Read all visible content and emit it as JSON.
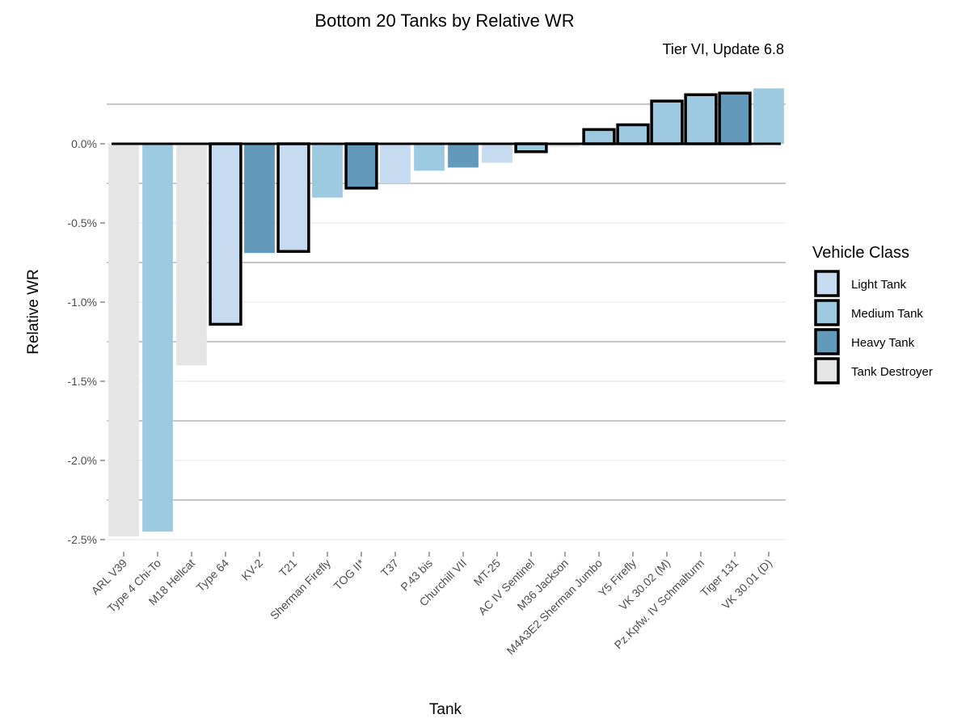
{
  "chart_data": {
    "type": "bar",
    "title": "Bottom 20 Tanks by Relative WR",
    "subtitle": "Tier VI, Update 6.8",
    "xlabel": "Tank",
    "ylabel": "Relative WR",
    "ylim": [
      -2.5,
      0.35
    ],
    "y_ticks": [
      "0.0%",
      "-0.5%",
      "-1.0%",
      "-1.5%",
      "-2.0%",
      "-2.5%"
    ],
    "y_tick_values": [
      0.0,
      -0.5,
      -1.0,
      -1.5,
      -2.0,
      -2.5
    ],
    "grid": true,
    "legend_position": "right",
    "legend_title": "Vehicle Class",
    "classes": [
      {
        "name": "Light Tank",
        "color": "#c6dbef"
      },
      {
        "name": "Medium Tank",
        "color": "#9ecae1"
      },
      {
        "name": "Heavy Tank",
        "color": "#6399bb"
      },
      {
        "name": "Tank Destroyer",
        "color": "#e5e5e5"
      }
    ],
    "bars": [
      {
        "tank": "ARL V39",
        "value": -2.48,
        "class": "Tank Destroyer",
        "outlined": false
      },
      {
        "tank": "Type 4 Chi-To",
        "value": -2.45,
        "class": "Medium Tank",
        "outlined": false
      },
      {
        "tank": "M18 Hellcat",
        "value": -1.4,
        "class": "Tank Destroyer",
        "outlined": false
      },
      {
        "tank": "Type 64",
        "value": -1.14,
        "class": "Light Tank",
        "outlined": true
      },
      {
        "tank": "KV-2",
        "value": -0.69,
        "class": "Heavy Tank",
        "outlined": false
      },
      {
        "tank": "T21",
        "value": -0.68,
        "class": "Light Tank",
        "outlined": true
      },
      {
        "tank": "Sherman Firefly",
        "value": -0.34,
        "class": "Medium Tank",
        "outlined": false
      },
      {
        "tank": "TOG II*",
        "value": -0.28,
        "class": "Heavy Tank",
        "outlined": true
      },
      {
        "tank": "T37",
        "value": -0.25,
        "class": "Light Tank",
        "outlined": false
      },
      {
        "tank": "P.43 bis",
        "value": -0.17,
        "class": "Medium Tank",
        "outlined": false
      },
      {
        "tank": "Churchill VII",
        "value": -0.15,
        "class": "Heavy Tank",
        "outlined": false
      },
      {
        "tank": "MT-25",
        "value": -0.12,
        "class": "Light Tank",
        "outlined": false
      },
      {
        "tank": "AC IV Sentinel",
        "value": -0.05,
        "class": "Medium Tank",
        "outlined": true
      },
      {
        "tank": "M36 Jackson",
        "value": -0.02,
        "class": "Tank Destroyer",
        "outlined": false
      },
      {
        "tank": "M4A3E2 Sherman Jumbo",
        "value": 0.09,
        "class": "Medium Tank",
        "outlined": true
      },
      {
        "tank": "Y5 Firefly",
        "value": 0.12,
        "class": "Medium Tank",
        "outlined": true
      },
      {
        "tank": "VK 30.02 (M)",
        "value": 0.27,
        "class": "Medium Tank",
        "outlined": true
      },
      {
        "tank": "Pz.Kpfw. IV Schmalturm",
        "value": 0.31,
        "class": "Medium Tank",
        "outlined": true
      },
      {
        "tank": "Tiger 131",
        "value": 0.32,
        "class": "Heavy Tank",
        "outlined": true
      },
      {
        "tank": "VK 30.01 (D)",
        "value": 0.35,
        "class": "Medium Tank",
        "outlined": false
      }
    ]
  }
}
